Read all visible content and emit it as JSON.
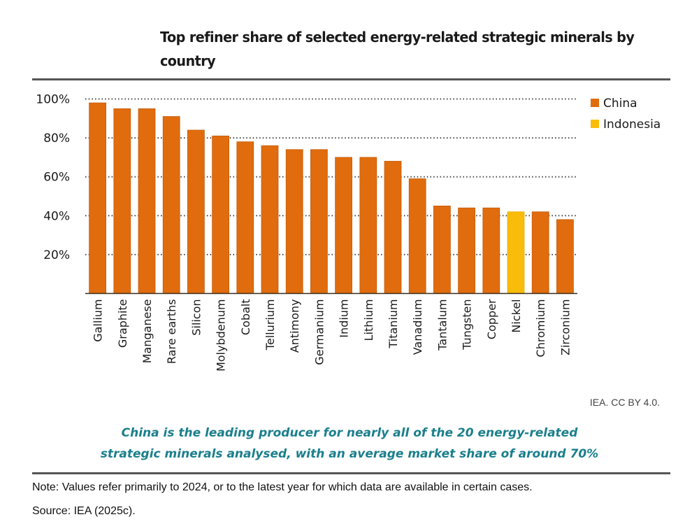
{
  "header": {
    "title": "Top refiner share of selected energy-related strategic minerals by country"
  },
  "chart_data": {
    "type": "bar",
    "title": "Top refiner share of selected energy-related strategic minerals by country",
    "xlabel": "",
    "ylabel": "",
    "ylim": [
      0,
      100
    ],
    "y_ticks": [
      20,
      40,
      60,
      80,
      100
    ],
    "y_tick_labels": [
      "20%",
      "40%",
      "60%",
      "80%",
      "100%"
    ],
    "grid": "horizontal dotted",
    "legend_position": "top-right",
    "categories": [
      "Gallium",
      "Graphite",
      "Manganese",
      "Rare earths",
      "Silicon",
      "Molybdenum",
      "Cobalt",
      "Tellurium",
      "Antimony",
      "Germanium",
      "Indium",
      "Lithium",
      "Titanium",
      "Vanadium",
      "Tantalum",
      "Tungsten",
      "Copper",
      "Nickel",
      "Chromium",
      "Zirconium"
    ],
    "values": [
      98,
      95,
      95,
      91,
      84,
      81,
      78,
      76,
      74,
      74,
      70,
      70,
      68,
      59,
      45,
      44,
      44,
      42,
      42,
      38
    ],
    "top_country": [
      "China",
      "China",
      "China",
      "China",
      "China",
      "China",
      "China",
      "China",
      "China",
      "China",
      "China",
      "China",
      "China",
      "China",
      "China",
      "China",
      "China",
      "Indonesia",
      "China",
      "China"
    ],
    "series": [
      {
        "name": "China",
        "color": "#e06c0e"
      },
      {
        "name": "Indonesia",
        "color": "#f9bc0a"
      }
    ]
  },
  "credit": "IEA. CC BY 4.0.",
  "message": {
    "line1": "China is the leading producer for nearly all of the 20 energy-related",
    "line2": "strategic minerals analysed, with an average market share of around 70%"
  },
  "note": "Note: Values refer primarily to 2024, or to the latest year for which data are available in certain cases.",
  "source": "Source: IEA (2025c)."
}
